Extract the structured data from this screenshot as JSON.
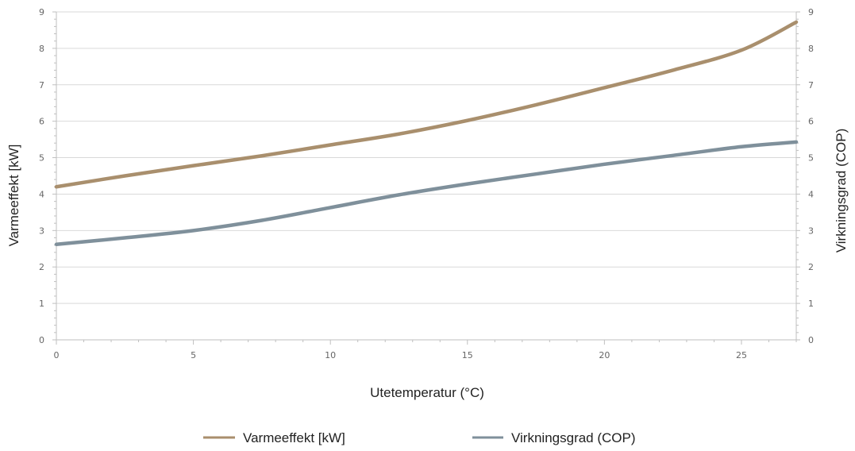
{
  "chart_data": {
    "type": "line",
    "xlabel": "Utetemperatur (°C)",
    "ylabel": "Varmeeffekt [kW]",
    "y2label": "Virkningsgrad (COP)",
    "xlim": [
      0,
      27
    ],
    "ylim": [
      0,
      9
    ],
    "y2lim": [
      0,
      9
    ],
    "x_ticks": [
      "0",
      "5",
      "10",
      "15",
      "20",
      "25"
    ],
    "y_ticks": [
      "0",
      "1",
      "2",
      "3",
      "4",
      "5",
      "6",
      "7",
      "8",
      "9"
    ],
    "y2_ticks": [
      "0",
      "1",
      "2",
      "3",
      "4",
      "5",
      "6",
      "7",
      "8",
      "9"
    ],
    "grid": "horizontal",
    "legend_position": "bottom",
    "series": [
      {
        "name": "Varmeeffekt [kW]",
        "axis": "left",
        "color": "#a98f6d",
        "x": [
          0,
          2.5,
          5,
          7.5,
          10,
          12.5,
          15,
          17.5,
          20,
          22.5,
          25,
          27
        ],
        "y": [
          4.2,
          4.5,
          4.78,
          5.05,
          5.35,
          5.65,
          6.02,
          6.45,
          6.92,
          7.4,
          7.95,
          8.72
        ]
      },
      {
        "name": "Virkningsgrad (COP)",
        "axis": "right",
        "color": "#7f909b",
        "x": [
          0,
          2.5,
          5,
          7.5,
          10,
          12.5,
          15,
          17.5,
          20,
          22.5,
          25,
          27
        ],
        "y": [
          2.62,
          2.8,
          3.0,
          3.28,
          3.63,
          3.98,
          4.28,
          4.55,
          4.82,
          5.06,
          5.3,
          5.43
        ]
      }
    ]
  }
}
